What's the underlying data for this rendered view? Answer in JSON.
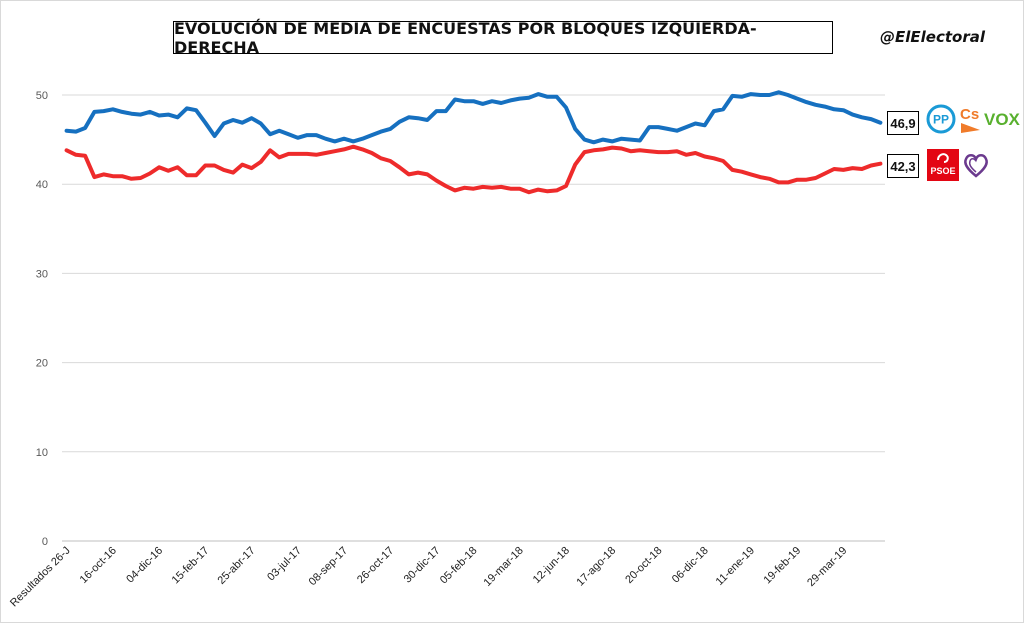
{
  "title": "EVOLUCIÓN DE MEDIA DE ENCUESTAS POR BLOQUES IZQUIERDA-DERECHA",
  "handle": "@ElElectoral",
  "colors": {
    "right": "#1670c0",
    "left": "#ee2b2b",
    "grid": "#d9d9d9",
    "axis_text": "#595959"
  },
  "logos": {
    "pp": "PP",
    "cs": "Cs",
    "vox": "VOX",
    "psoe": "PSOE"
  },
  "chart_data": {
    "type": "line",
    "title": "EVOLUCIÓN DE MEDIA DE ENCUESTAS POR BLOQUES IZQUIERDA-DERECHA",
    "xlabel": "",
    "ylabel": "",
    "ylim": [
      0,
      50
    ],
    "yticks": [
      0,
      10,
      20,
      30,
      40,
      50
    ],
    "grid": true,
    "legend": "none",
    "x_tick_labels": [
      "Resultados 26-J",
      "16-oct-16",
      "04-dic-16",
      "15-feb-17",
      "25-abr-17",
      "03-jul-17",
      "08-sep-17",
      "26-oct-17",
      "30-dic-17",
      "05-feb-18",
      "19-mar-18",
      "12-jun-18",
      "17-ago-18",
      "20-oct-18",
      "06-dic-18",
      "11-ene-19",
      "19-feb-19",
      "29-mar-19"
    ],
    "series": [
      {
        "key": "right",
        "end_label": "46,9",
        "values": [
          46.0,
          45.9,
          46.3,
          48.1,
          48.2,
          48.4,
          48.1,
          47.9,
          47.8,
          48.1,
          47.7,
          47.8,
          47.5,
          48.5,
          48.3,
          46.9,
          45.4,
          46.8,
          47.2,
          46.9,
          47.4,
          46.8,
          45.6,
          46.0,
          45.6,
          45.2,
          45.5,
          45.5,
          45.1,
          44.8,
          45.1,
          44.8,
          45.1,
          45.5,
          45.9,
          46.2,
          47.0,
          47.5,
          47.4,
          47.2,
          48.2,
          48.2,
          49.5,
          49.3,
          49.3,
          49.0,
          49.3,
          49.1,
          49.4,
          49.6,
          49.7,
          50.1,
          49.8,
          49.8,
          48.6,
          46.2,
          45.0,
          44.7,
          45.0,
          44.8,
          45.1,
          45.0,
          44.9,
          46.4,
          46.4,
          46.2,
          46.0,
          46.4,
          46.8,
          46.6,
          48.2,
          48.4,
          49.9,
          49.8,
          50.1,
          50.0,
          50.0,
          50.3,
          50.0,
          49.6,
          49.2,
          48.9,
          48.7,
          48.4,
          48.3,
          47.8,
          47.5,
          47.3,
          46.9
        ]
      },
      {
        "key": "left",
        "end_label": "42,3",
        "values": [
          43.8,
          43.3,
          43.2,
          40.8,
          41.1,
          40.9,
          40.9,
          40.6,
          40.7,
          41.2,
          41.9,
          41.5,
          41.9,
          41.0,
          41.0,
          42.1,
          42.1,
          41.6,
          41.3,
          42.2,
          41.8,
          42.5,
          43.8,
          43.0,
          43.4,
          43.4,
          43.4,
          43.3,
          43.5,
          43.7,
          43.9,
          44.2,
          43.9,
          43.5,
          42.9,
          42.6,
          41.9,
          41.1,
          41.3,
          41.1,
          40.4,
          39.8,
          39.3,
          39.6,
          39.5,
          39.7,
          39.6,
          39.7,
          39.5,
          39.5,
          39.1,
          39.4,
          39.2,
          39.3,
          39.8,
          42.2,
          43.6,
          43.8,
          43.9,
          44.1,
          44.0,
          43.7,
          43.8,
          43.7,
          43.6,
          43.6,
          43.7,
          43.3,
          43.5,
          43.1,
          42.9,
          42.6,
          41.6,
          41.4,
          41.1,
          40.8,
          40.6,
          40.2,
          40.2,
          40.5,
          40.5,
          40.7,
          41.2,
          41.7,
          41.6,
          41.8,
          41.7,
          42.1,
          42.3
        ]
      }
    ]
  }
}
